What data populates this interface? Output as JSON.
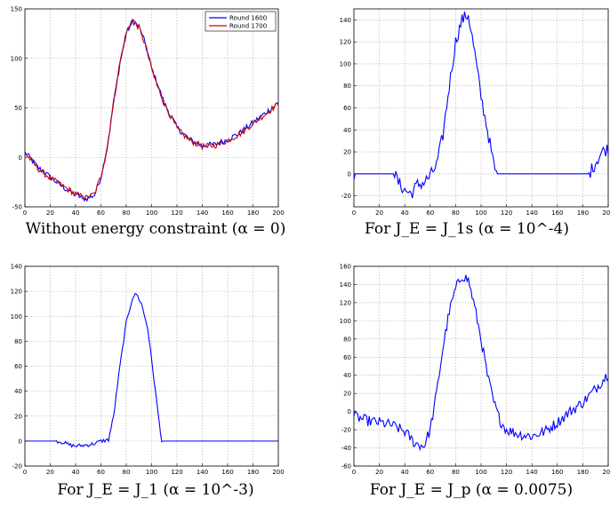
{
  "chart_data": [
    {
      "type": "line",
      "caption": "Without energy constraint (α = 0)",
      "xlim": [
        0,
        200
      ],
      "ylim": [
        -50,
        150
      ],
      "xticks": [
        0,
        20,
        40,
        60,
        80,
        100,
        120,
        140,
        160,
        180,
        200
      ],
      "yticks": [
        -50,
        0,
        50,
        100,
        150
      ],
      "grid": true,
      "legend": "top-right",
      "series": [
        {
          "name": "Round 1600",
          "color": "#0000ff",
          "noise": 3,
          "points": [
            [
              0,
              5
            ],
            [
              5,
              -2
            ],
            [
              10,
              -10
            ],
            [
              20,
              -20
            ],
            [
              30,
              -30
            ],
            [
              40,
              -38
            ],
            [
              48,
              -42
            ],
            [
              55,
              -38
            ],
            [
              60,
              -20
            ],
            [
              65,
              10
            ],
            [
              70,
              55
            ],
            [
              75,
              95
            ],
            [
              80,
              125
            ],
            [
              85,
              138
            ],
            [
              90,
              132
            ],
            [
              95,
              115
            ],
            [
              100,
              90
            ],
            [
              110,
              55
            ],
            [
              120,
              30
            ],
            [
              130,
              18
            ],
            [
              140,
              12
            ],
            [
              150,
              13
            ],
            [
              160,
              18
            ],
            [
              170,
              25
            ],
            [
              180,
              35
            ],
            [
              190,
              45
            ],
            [
              200,
              55
            ]
          ]
        },
        {
          "name": "Round 1700",
          "color": "#cc0000",
          "noise": 3,
          "points": [
            [
              0,
              4
            ],
            [
              5,
              -3
            ],
            [
              10,
              -11
            ],
            [
              20,
              -21
            ],
            [
              30,
              -29
            ],
            [
              40,
              -37
            ],
            [
              48,
              -41
            ],
            [
              55,
              -37
            ],
            [
              60,
              -19
            ],
            [
              65,
              11
            ],
            [
              70,
              56
            ],
            [
              75,
              96
            ],
            [
              80,
              126
            ],
            [
              85,
              139
            ],
            [
              90,
              131
            ],
            [
              95,
              114
            ],
            [
              100,
              89
            ],
            [
              110,
              54
            ],
            [
              120,
              29
            ],
            [
              130,
              17
            ],
            [
              140,
              11
            ],
            [
              150,
              12
            ],
            [
              160,
              17
            ],
            [
              170,
              24
            ],
            [
              180,
              34
            ],
            [
              190,
              44
            ],
            [
              200,
              54
            ]
          ]
        }
      ]
    },
    {
      "type": "line",
      "caption": "For J_E = J_1s   (α = 10^-4)",
      "xlim": [
        0,
        200
      ],
      "ylim": [
        -30,
        150
      ],
      "xticks": [
        0,
        20,
        40,
        60,
        80,
        100,
        120,
        140,
        160,
        180,
        200
      ],
      "yticks": [
        -20,
        0,
        20,
        40,
        60,
        80,
        100,
        120,
        140
      ],
      "grid": true,
      "series": [
        {
          "name": "",
          "color": "#0000ff",
          "noise": 6,
          "points": [
            [
              0,
              0
            ],
            [
              32,
              0
            ],
            [
              35,
              -8
            ],
            [
              40,
              -15
            ],
            [
              45,
              -18
            ],
            [
              50,
              -10
            ],
            [
              55,
              -8
            ],
            [
              60,
              -2
            ],
            [
              65,
              8
            ],
            [
              70,
              35
            ],
            [
              75,
              80
            ],
            [
              80,
              120
            ],
            [
              85,
              140
            ],
            [
              90,
              145
            ],
            [
              95,
              110
            ],
            [
              100,
              70
            ],
            [
              105,
              40
            ],
            [
              110,
              8
            ],
            [
              112,
              0
            ],
            [
              185,
              0
            ],
            [
              190,
              10
            ],
            [
              195,
              20
            ],
            [
              200,
              23
            ]
          ]
        }
      ]
    },
    {
      "type": "line",
      "caption": "For J_E = J_1   (α = 10^-3)",
      "xlim": [
        0,
        200
      ],
      "ylim": [
        -20,
        140
      ],
      "xticks": [
        0,
        20,
        40,
        60,
        80,
        100,
        120,
        140,
        160,
        180,
        200
      ],
      "yticks": [
        -20,
        0,
        20,
        40,
        60,
        80,
        100,
        120,
        140
      ],
      "grid": true,
      "series": [
        {
          "name": "",
          "color": "#0000ff",
          "noise": 1.5,
          "points": [
            [
              0,
              0
            ],
            [
              25,
              0
            ],
            [
              30,
              -1
            ],
            [
              35,
              -3
            ],
            [
              40,
              -4
            ],
            [
              50,
              -3
            ],
            [
              55,
              -2
            ],
            [
              60,
              0
            ],
            [
              66,
              1
            ],
            [
              70,
              20
            ],
            [
              75,
              60
            ],
            [
              80,
              95
            ],
            [
              85,
              115
            ],
            [
              88,
              118
            ],
            [
              92,
              110
            ],
            [
              97,
              90
            ],
            [
              100,
              65
            ],
            [
              103,
              40
            ],
            [
              106,
              15
            ],
            [
              108,
              0
            ],
            [
              200,
              0
            ]
          ]
        }
      ]
    },
    {
      "type": "line",
      "caption": "For J_E = J_p   (α = 0.0075)",
      "xlim": [
        0,
        200
      ],
      "ylim": [
        -60,
        160
      ],
      "xticks": [
        0,
        20,
        40,
        60,
        80,
        100,
        120,
        140,
        160,
        180,
        200
      ],
      "yticks": [
        -60,
        -40,
        -20,
        0,
        20,
        40,
        60,
        80,
        100,
        120,
        140,
        160
      ],
      "grid": true,
      "series": [
        {
          "name": "",
          "color": "#0000ff",
          "noise": 6,
          "points": [
            [
              0,
              -5
            ],
            [
              10,
              -10
            ],
            [
              20,
              -12
            ],
            [
              30,
              -15
            ],
            [
              40,
              -22
            ],
            [
              48,
              -35
            ],
            [
              55,
              -38
            ],
            [
              60,
              -20
            ],
            [
              65,
              20
            ],
            [
              70,
              70
            ],
            [
              75,
              110
            ],
            [
              80,
              135
            ],
            [
              85,
              150
            ],
            [
              90,
              145
            ],
            [
              95,
              115
            ],
            [
              100,
              80
            ],
            [
              105,
              40
            ],
            [
              110,
              10
            ],
            [
              115,
              -10
            ],
            [
              120,
              -20
            ],
            [
              130,
              -25
            ],
            [
              140,
              -27
            ],
            [
              150,
              -22
            ],
            [
              160,
              -12
            ],
            [
              170,
              0
            ],
            [
              180,
              10
            ],
            [
              190,
              25
            ],
            [
              200,
              42
            ]
          ]
        }
      ]
    }
  ]
}
